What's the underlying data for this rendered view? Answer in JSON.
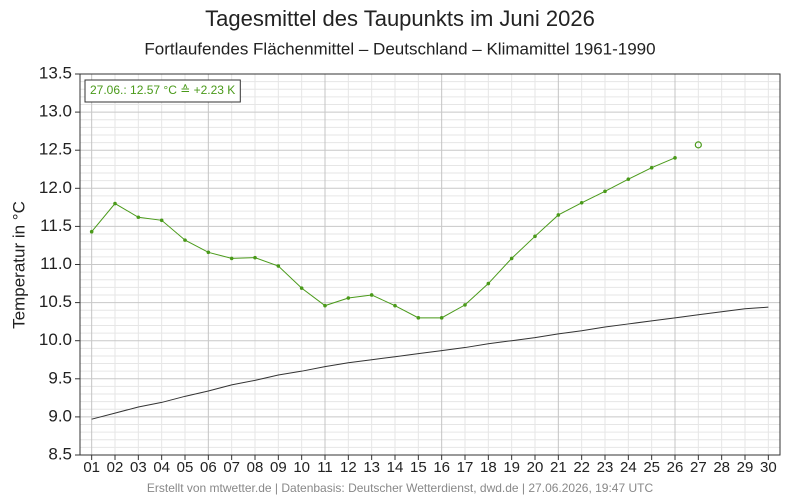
{
  "chart_data": {
    "type": "line",
    "title": "Tagesmittel des Taupunkts im Juni 2026",
    "subtitle": "Fortlaufendes Flächenmittel – Deutschland – Klimamittel 1961-1990",
    "ylabel": "Temperatur in °C",
    "annotation": "27.06.: 12.57 °C ≙ +2.23 K",
    "footer": "Erstellt von mtwetter.de | Datenbasis: Deutscher Wetterdienst, dwd.de | 27.06.2026, 19:47 UTC",
    "categories": [
      "01",
      "02",
      "03",
      "04",
      "05",
      "06",
      "07",
      "08",
      "09",
      "10",
      "11",
      "12",
      "13",
      "14",
      "15",
      "16",
      "17",
      "18",
      "19",
      "20",
      "21",
      "22",
      "23",
      "24",
      "25",
      "26",
      "27",
      "28",
      "29",
      "30"
    ],
    "series": [
      {
        "color": "#4a9a1a",
        "markers": "dot",
        "values": [
          11.43,
          11.8,
          11.62,
          11.58,
          11.32,
          11.16,
          11.08,
          11.09,
          10.98,
          10.69,
          10.46,
          10.56,
          10.6,
          10.46,
          10.3,
          10.3,
          10.47,
          10.75,
          11.08,
          11.37,
          11.65,
          11.81,
          11.96,
          12.12,
          12.27,
          12.4,
          null,
          null,
          null,
          null
        ]
      },
      {
        "color": "#333333",
        "markers": "none",
        "values": [
          8.97,
          9.05,
          9.13,
          9.19,
          9.27,
          9.34,
          9.42,
          9.48,
          9.55,
          9.6,
          9.66,
          9.71,
          9.75,
          9.79,
          9.83,
          9.87,
          9.91,
          9.96,
          10.0,
          10.04,
          10.09,
          10.13,
          10.18,
          10.22,
          10.26,
          10.3,
          10.34,
          10.38,
          10.42,
          10.44
        ]
      },
      {
        "color": "#4a9a1a",
        "markers": "open-circle",
        "values": [
          null,
          null,
          null,
          null,
          null,
          null,
          null,
          null,
          null,
          null,
          null,
          null,
          null,
          null,
          null,
          null,
          null,
          null,
          null,
          null,
          null,
          null,
          null,
          null,
          null,
          null,
          12.57,
          null,
          null,
          null
        ]
      }
    ],
    "ylim": [
      8.5,
      13.5
    ],
    "yticks": [
      8.5,
      {
        "value": 9,
        "label": "9.0"
      },
      9.5,
      {
        "value": 10,
        "label": "10.0"
      },
      10.5,
      {
        "value": 11,
        "label": "11.0"
      },
      11.5,
      {
        "value": 12,
        "label": "12.0"
      },
      12.5,
      {
        "value": 13,
        "label": "13.0"
      },
      13.5
    ],
    "yminorticks": [
      8.6,
      8.7,
      8.8,
      8.9,
      9.1,
      9.2,
      9.3,
      9.4,
      9.6,
      9.7,
      9.8,
      9.9,
      10.1,
      10.2,
      10.3,
      10.4,
      10.6,
      10.7,
      10.8,
      10.9,
      11.1,
      11.2,
      11.3,
      11.4,
      11.6,
      11.7,
      11.8,
      11.9,
      12.1,
      12.2,
      12.3,
      12.4,
      12.6,
      12.7,
      12.8,
      12.9,
      13.1,
      13.2,
      13.3,
      13.4
    ],
    "grid": true
  }
}
